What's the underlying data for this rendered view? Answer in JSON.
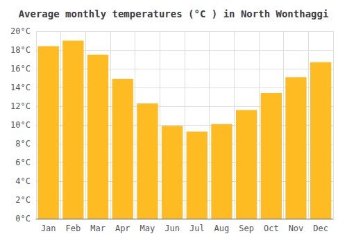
{
  "chart_data": {
    "type": "bar",
    "title": "Average monthly temperatures (°C ) in North Wonthaggi",
    "categories": [
      "Jan",
      "Feb",
      "Mar",
      "Apr",
      "May",
      "Jun",
      "Jul",
      "Aug",
      "Sep",
      "Oct",
      "Nov",
      "Dec"
    ],
    "values": [
      18.4,
      19.0,
      17.5,
      14.9,
      12.3,
      9.9,
      9.3,
      10.1,
      11.6,
      13.4,
      15.1,
      16.7
    ],
    "color": "#FFBB22",
    "ylim": [
      0,
      20
    ],
    "yticks": [
      {
        "value": 0,
        "label": "0°C"
      },
      {
        "value": 2,
        "label": "2°C"
      },
      {
        "value": 4,
        "label": "4°C"
      },
      {
        "value": 6,
        "label": "6°C"
      },
      {
        "value": 8,
        "label": "8°C"
      },
      {
        "value": 10,
        "label": "10°C"
      },
      {
        "value": 12,
        "label": "12°C"
      },
      {
        "value": 14,
        "label": "14°C"
      },
      {
        "value": 16,
        "label": "16°C"
      },
      {
        "value": 18,
        "label": "18°C"
      },
      {
        "value": 20,
        "label": "20°C"
      }
    ],
    "grid": true
  }
}
